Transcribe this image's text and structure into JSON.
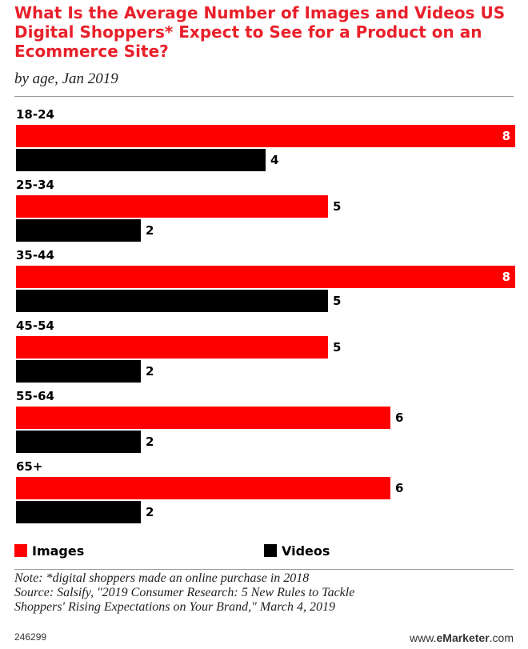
{
  "header": {
    "title": "What Is the Average Number of Images and Videos US Digital Shoppers* Expect to See for a Product on an Ecommerce Site?",
    "subtitle": "by age, Jan 2019"
  },
  "chart_data": {
    "type": "bar",
    "orientation": "horizontal",
    "categories": [
      "18-24",
      "25-34",
      "35-44",
      "45-54",
      "55-64",
      "65+"
    ],
    "series": [
      {
        "name": "Images",
        "color": "#ff0000",
        "values": [
          8,
          5,
          8,
          5,
          6,
          6
        ]
      },
      {
        "name": "Videos",
        "color": "#000000",
        "values": [
          4,
          2,
          5,
          2,
          2,
          2
        ]
      }
    ],
    "xlim": [
      0,
      8
    ],
    "grid": false,
    "legend_position": "bottom"
  },
  "legend": {
    "images_label": "Images",
    "videos_label": "Videos"
  },
  "footer": {
    "note": "Note: *digital shoppers made an online purchase in 2018",
    "source_line1": "Source: Salsify, \"2019 Consumer Research: 5 New Rules to Tackle",
    "source_line2": "Shoppers' Rising Expectations on Your Brand,\" March 4, 2019",
    "chart_id": "246299",
    "brand_prefix": "www.",
    "brand_name": "eMarketer",
    "brand_suffix": ".com"
  }
}
